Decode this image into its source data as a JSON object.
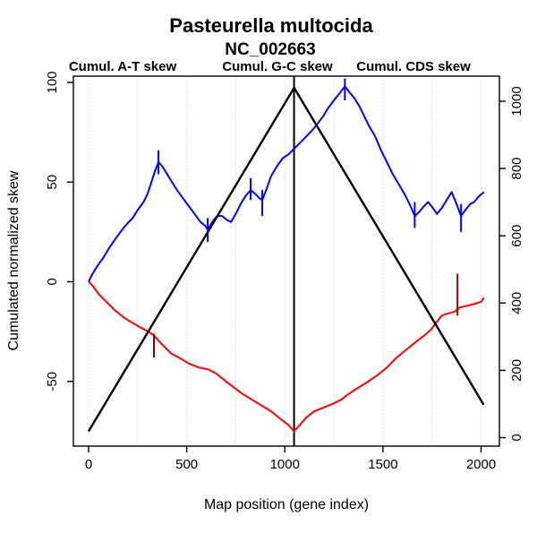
{
  "title": "Pasteurella multocida",
  "subtitle": "NC_002663",
  "legend": [
    {
      "label": "Cumul. A-T skew",
      "color": "#ff0000"
    },
    {
      "label": "Cumul. G-C skew",
      "color": "#0000ff"
    },
    {
      "label": "Cumul. CDS skew",
      "color": "#000000"
    }
  ],
  "axes": {
    "x_label": "Map position (gene index)",
    "y_left_label": "Cumulated normalized skew"
  },
  "chart_data": {
    "type": "line",
    "title": "Pasteurella multocida",
    "subtitle": "NC_002663",
    "xlabel": "Map position (gene index)",
    "ylabel_left": "Cumulated normalized skew",
    "ylabel_right": "",
    "x_ticks": [
      0,
      500,
      1000,
      1500,
      2000
    ],
    "y_left_ticks": [
      -50,
      0,
      50,
      100
    ],
    "y_right_ticks": [
      0,
      200,
      400,
      600,
      800,
      1000
    ],
    "xlim": [
      -80,
      2090
    ],
    "ylim_left": [
      -82,
      103
    ],
    "ylim_right": [
      -2,
      1079
    ],
    "grid": {
      "vertical_dotted_step": 250,
      "color": "#c4c4c4",
      "horizontal": false
    },
    "legend_position": "top",
    "vline_x": 1047,
    "series": [
      {
        "name": "Cumul. A-T skew",
        "color": "#ff0000",
        "axis": "left",
        "points": [
          [
            0,
            0
          ],
          [
            20,
            -2
          ],
          [
            50,
            -6
          ],
          [
            90,
            -10
          ],
          [
            130,
            -14
          ],
          [
            180,
            -18
          ],
          [
            230,
            -21
          ],
          [
            265,
            -23
          ],
          [
            305,
            -25
          ],
          [
            333,
            -27
          ],
          [
            370,
            -31
          ],
          [
            400,
            -34
          ],
          [
            420,
            -36
          ],
          [
            460,
            -38
          ],
          [
            510,
            -41
          ],
          [
            560,
            -43
          ],
          [
            610,
            -44
          ],
          [
            650,
            -46
          ],
          [
            700,
            -50
          ],
          [
            740,
            -53
          ],
          [
            780,
            -56
          ],
          [
            830,
            -59
          ],
          [
            880,
            -62
          ],
          [
            930,
            -65
          ],
          [
            980,
            -69
          ],
          [
            1020,
            -72
          ],
          [
            1046,
            -75
          ],
          [
            1075,
            -72
          ],
          [
            1110,
            -68
          ],
          [
            1150,
            -65
          ],
          [
            1200,
            -63
          ],
          [
            1250,
            -61
          ],
          [
            1290,
            -59
          ],
          [
            1315,
            -57
          ],
          [
            1360,
            -54
          ],
          [
            1410,
            -51
          ],
          [
            1470,
            -47
          ],
          [
            1520,
            -43
          ],
          [
            1570,
            -38
          ],
          [
            1620,
            -34
          ],
          [
            1670,
            -30
          ],
          [
            1710,
            -27
          ],
          [
            1745,
            -24
          ],
          [
            1775,
            -20
          ],
          [
            1800,
            -17
          ],
          [
            1830,
            -16
          ],
          [
            1865,
            -15
          ],
          [
            1890,
            -13
          ],
          [
            1930,
            -12
          ],
          [
            1970,
            -11
          ],
          [
            2000,
            -10
          ],
          [
            2015,
            -8
          ]
        ]
      },
      {
        "name": "Cumul. G-C skew",
        "color": "#0000ff",
        "axis": "left",
        "points": [
          [
            0,
            0
          ],
          [
            20,
            4
          ],
          [
            45,
            8
          ],
          [
            75,
            12
          ],
          [
            105,
            17
          ],
          [
            140,
            22
          ],
          [
            170,
            26
          ],
          [
            195,
            29
          ],
          [
            225,
            32
          ],
          [
            250,
            36
          ],
          [
            280,
            40
          ],
          [
            300,
            44
          ],
          [
            320,
            50
          ],
          [
            340,
            56
          ],
          [
            356,
            60
          ],
          [
            375,
            58
          ],
          [
            400,
            54
          ],
          [
            425,
            50
          ],
          [
            450,
            46
          ],
          [
            480,
            42
          ],
          [
            510,
            38
          ],
          [
            540,
            34
          ],
          [
            570,
            30
          ],
          [
            595,
            28
          ],
          [
            607,
            26
          ],
          [
            630,
            30
          ],
          [
            655,
            33
          ],
          [
            680,
            33
          ],
          [
            705,
            31
          ],
          [
            726,
            30
          ],
          [
            750,
            34
          ],
          [
            775,
            39
          ],
          [
            800,
            43
          ],
          [
            826,
            46
          ],
          [
            850,
            44
          ],
          [
            870,
            42
          ],
          [
            885,
            41
          ],
          [
            905,
            46
          ],
          [
            930,
            53
          ],
          [
            960,
            58
          ],
          [
            990,
            62
          ],
          [
            1020,
            64
          ],
          [
            1050,
            67
          ],
          [
            1080,
            70
          ],
          [
            1110,
            73
          ],
          [
            1140,
            76
          ],
          [
            1165,
            79
          ],
          [
            1195,
            83
          ],
          [
            1220,
            87
          ],
          [
            1250,
            91
          ],
          [
            1275,
            94
          ],
          [
            1306,
            98
          ],
          [
            1330,
            95
          ],
          [
            1355,
            92
          ],
          [
            1380,
            88
          ],
          [
            1405,
            83
          ],
          [
            1430,
            78
          ],
          [
            1460,
            73
          ],
          [
            1490,
            66
          ],
          [
            1520,
            60
          ],
          [
            1550,
            54
          ],
          [
            1580,
            49
          ],
          [
            1610,
            44
          ],
          [
            1640,
            38
          ],
          [
            1662,
            33
          ],
          [
            1685,
            35
          ],
          [
            1710,
            38
          ],
          [
            1730,
            40
          ],
          [
            1755,
            37
          ],
          [
            1775,
            34
          ],
          [
            1800,
            37
          ],
          [
            1825,
            41
          ],
          [
            1850,
            45
          ],
          [
            1875,
            39
          ],
          [
            1898,
            33
          ],
          [
            1920,
            36
          ],
          [
            1945,
            39
          ],
          [
            1965,
            40
          ],
          [
            1990,
            43
          ],
          [
            2015,
            45
          ]
        ]
      },
      {
        "name": "Cumul. CDS skew",
        "color": "#000000",
        "axis": "right",
        "points": [
          [
            0,
            19
          ],
          [
            1047,
            1040
          ],
          [
            2013,
            98
          ]
        ]
      }
    ],
    "marker_ticks": [
      {
        "color": "#0000ff",
        "axis": "left",
        "x": 356,
        "v1": 54,
        "v2": 66
      },
      {
        "color": "#0000ff",
        "axis": "left",
        "x": 607,
        "v1": 20,
        "v2": 32
      },
      {
        "color": "#0000ff",
        "axis": "left",
        "x": 826,
        "v1": 41,
        "v2": 52
      },
      {
        "color": "#0000ff",
        "axis": "left",
        "x": 885,
        "v1": 33,
        "v2": 46
      },
      {
        "color": "#0000ff",
        "axis": "left",
        "x": 1306,
        "v1": 91,
        "v2": 102
      },
      {
        "color": "#0000ff",
        "axis": "left",
        "x": 1662,
        "v1": 27,
        "v2": 40
      },
      {
        "color": "#0000ff",
        "axis": "left",
        "x": 1898,
        "v1": 25,
        "v2": 39
      },
      {
        "color": "#8b0000",
        "axis": "left",
        "x": 333,
        "v1": -38,
        "v2": -26
      },
      {
        "color": "#8b0000",
        "axis": "left",
        "x": 1880,
        "v1": -17,
        "v2": 4
      }
    ],
    "colors": {
      "at_skew": "#ff0000",
      "gc_skew": "#0000ff",
      "cds_skew": "#000000",
      "marker_dark_red": "#8b0000",
      "grid": "#c4c4c4"
    }
  }
}
